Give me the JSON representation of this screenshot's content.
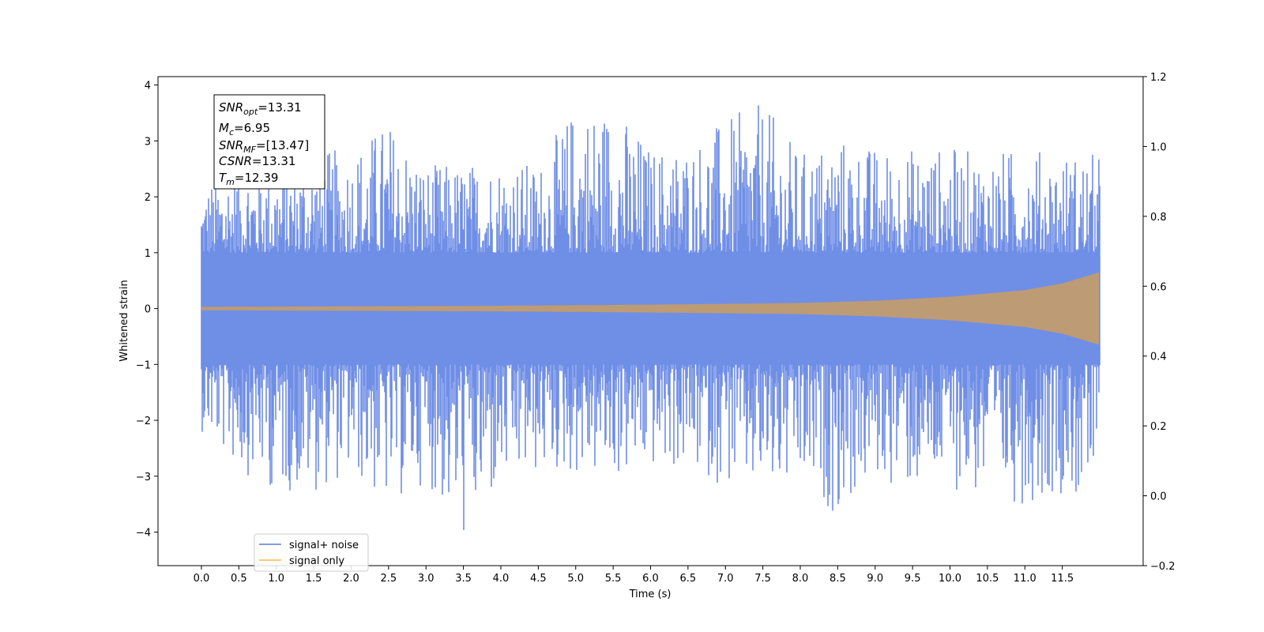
{
  "chart_data": {
    "type": "line",
    "xlabel": "Time (s)",
    "ylabel": "Whitened strain",
    "xlim": [
      -0.58,
      12.58
    ],
    "ylim": [
      -4.6,
      4.15
    ],
    "y2lim": [
      -0.2,
      1.2
    ],
    "x_ticks": [
      0.0,
      0.5,
      1.0,
      1.5,
      2.0,
      2.5,
      3.0,
      3.5,
      4.0,
      4.5,
      5.0,
      5.5,
      6.0,
      6.5,
      7.0,
      7.5,
      8.0,
      8.5,
      9.0,
      9.5,
      10.0,
      10.5,
      11.0,
      11.5
    ],
    "x_tick_labels": [
      "0.0",
      "0.5",
      "1.0",
      "1.5",
      "2.0",
      "2.5",
      "3.0",
      "3.5",
      "4.0",
      "4.5",
      "5.0",
      "5.5",
      "6.0",
      "6.5",
      "7.0",
      "7.5",
      "8.0",
      "8.5",
      "9.0",
      "9.5",
      "10.0",
      "10.5",
      "11.0",
      "11.5"
    ],
    "y_ticks": [
      4,
      3,
      2,
      1,
      0,
      -1,
      -2,
      -3,
      -4
    ],
    "y_tick_labels": [
      "4",
      "3",
      "2",
      "1",
      "0",
      "−1",
      "−2",
      "−3",
      "−4"
    ],
    "y2_ticks": [
      1.2,
      1.0,
      0.8,
      0.6,
      0.4,
      0.2,
      0.0,
      -0.2
    ],
    "y2_tick_labels": [
      "1.2",
      "1.0",
      "0.8",
      "0.6",
      "0.4",
      "0.2",
      "0.0",
      "−0.2"
    ],
    "grid": false,
    "legend_position": "bottom-left",
    "series": [
      {
        "name": "signal+ noise",
        "color": "#6f8ee6",
        "t_start": 0.0,
        "t_end": 12.0,
        "envelope": {
          "t": [
            0.0,
            0.5,
            1.0,
            1.5,
            2.0,
            2.5,
            3.0,
            3.5,
            4.0,
            4.5,
            5.0,
            5.5,
            6.0,
            6.5,
            7.0,
            7.5,
            8.0,
            8.5,
            9.0,
            9.5,
            10.0,
            10.5,
            11.0,
            11.5,
            12.0
          ],
          "upper": [
            2.2,
            2.8,
            2.7,
            2.8,
            2.9,
            3.4,
            2.6,
            2.6,
            2.7,
            2.6,
            3.7,
            3.7,
            2.9,
            3.0,
            3.4,
            3.7,
            2.8,
            3.1,
            2.9,
            2.9,
            2.9,
            2.8,
            2.9,
            2.8,
            2.8
          ],
          "lower": [
            -2.2,
            -2.9,
            -3.3,
            -3.3,
            -3.0,
            -3.6,
            -3.1,
            -4.2,
            -3.3,
            -3.0,
            -3.0,
            -3.1,
            -2.9,
            -2.9,
            -3.2,
            -3.4,
            -3.3,
            -3.7,
            -3.1,
            -3.3,
            -3.2,
            -3.5,
            -3.5,
            -3.3,
            -3.8
          ]
        }
      },
      {
        "name": "signal only",
        "color": "#ffc061",
        "overlap_color": "#bd9b74",
        "t_start": 0.0,
        "t_end": 12.0,
        "amplitude": {
          "t": [
            0.0,
            2.0,
            4.0,
            6.0,
            8.0,
            9.0,
            10.0,
            11.0,
            11.5,
            12.0
          ],
          "a": [
            0.03,
            0.04,
            0.05,
            0.07,
            0.1,
            0.14,
            0.21,
            0.33,
            0.45,
            0.65
          ]
        }
      }
    ],
    "annotation": [
      {
        "main": "SNR",
        "sub": "opt",
        "value": "=13.31"
      },
      {
        "main": "M",
        "sub": "c",
        "value": "=6.95"
      },
      {
        "main": "SNR",
        "sub": "MF",
        "value": "=[13.47]"
      },
      {
        "main": "CSNR",
        "sub": "",
        "value": "=13.31"
      },
      {
        "main": "T",
        "sub": "m",
        "value": "=12.39"
      }
    ]
  }
}
